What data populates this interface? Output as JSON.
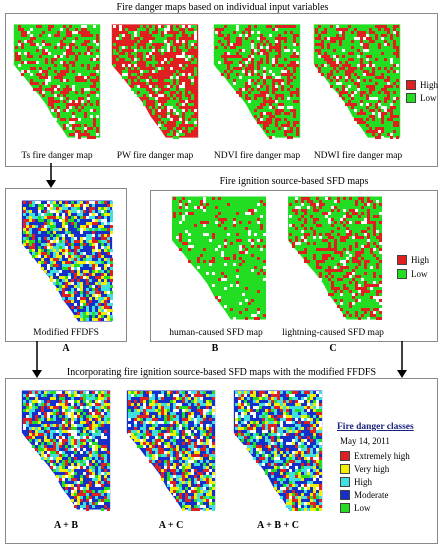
{
  "top_panel": {
    "title": "Fire danger maps based on individual input variables",
    "captions": [
      "Ts fire danger map",
      "PW fire danger map",
      "NDVI fire danger map",
      "NDWI fire danger map"
    ],
    "legend": [
      "High",
      "Low"
    ]
  },
  "modified_panel": {
    "caption": "Modified FFDFS",
    "letter": "A"
  },
  "sfd_panel": {
    "title": "Fire ignition source-based SFD maps",
    "captions": [
      "human-caused SFD map",
      "lightning-caused SFD map"
    ],
    "letters": [
      "B",
      "C"
    ],
    "legend": [
      "High",
      "Low"
    ]
  },
  "bottom_panel": {
    "title": "Incorporating fire ignition source-based SFD maps with the modified FFDFS",
    "letters": [
      "A + B",
      "A + C",
      "A + B + C"
    ],
    "legend_title": "Fire danger classes",
    "legend_date": "May 14, 2011",
    "classes": [
      "Extremely high",
      "Very high",
      "High",
      "Moderate",
      "Low"
    ]
  },
  "colors": {
    "high": "#e02020",
    "low": "#22dd22",
    "extremely_high": "#e02020",
    "very_high": "#f0f000",
    "class_high": "#40e0e0",
    "moderate": "#1530c8",
    "class_low": "#22dd22",
    "arrow": "#000000",
    "frame": "#8a8a8a"
  }
}
